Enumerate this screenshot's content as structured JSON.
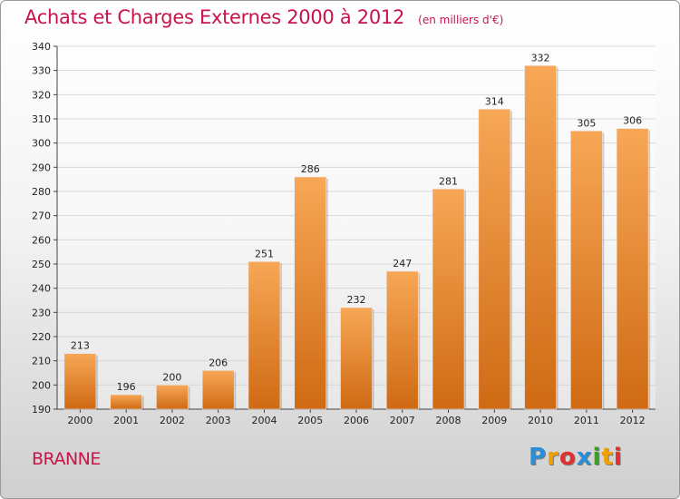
{
  "header": {
    "title": "Achats et Charges Externes 2000 à 2012",
    "unit": "(en milliers d'€)"
  },
  "location": "BRANNE",
  "logo": {
    "text": "Proxiti",
    "letters": [
      {
        "ch": "P",
        "color": "#2a8fd6"
      },
      {
        "ch": "r",
        "color": "#f0a000"
      },
      {
        "ch": "o",
        "color": "#e03030"
      },
      {
        "ch": "x",
        "color": "#2a8fd6"
      },
      {
        "ch": "i",
        "color": "#3aa02a"
      },
      {
        "ch": "t",
        "color": "#f0a000"
      },
      {
        "ch": "i",
        "color": "#e03030"
      }
    ]
  },
  "colors": {
    "accent": "#c8144a",
    "bar_top": "#f7a756",
    "bar_bottom": "#cf6a14",
    "grid": "#d8d8d8"
  },
  "chart_data": {
    "type": "bar",
    "categories": [
      "2000",
      "2001",
      "2002",
      "2003",
      "2004",
      "2005",
      "2006",
      "2007",
      "2008",
      "2009",
      "2010",
      "2011",
      "2012"
    ],
    "values": [
      213,
      196,
      200,
      206,
      251,
      286,
      232,
      247,
      281,
      314,
      332,
      305,
      306
    ],
    "title": "Achats et Charges Externes 2000 à 2012",
    "xlabel": "",
    "ylabel": "",
    "ylim": [
      190,
      340
    ],
    "yticks": [
      190,
      200,
      210,
      220,
      230,
      240,
      250,
      260,
      270,
      280,
      290,
      300,
      310,
      320,
      330,
      340
    ],
    "grid": true,
    "data_labels": true
  }
}
